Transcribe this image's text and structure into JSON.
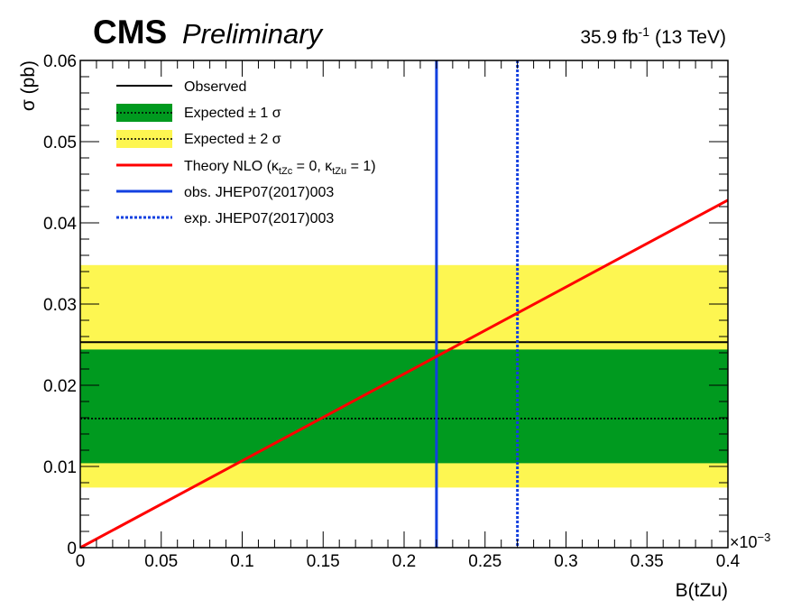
{
  "header": {
    "experiment": "CMS",
    "status": "Preliminary",
    "lumi_value": "35.9 fb",
    "lumi_exponent": "-1",
    "energy": "(13 TeV)"
  },
  "chart_data": {
    "type": "line",
    "xlabel": "B(tZu)",
    "ylabel": "σ (pb)",
    "x_multiplier": "×10",
    "x_multiplier_exponent": "−3",
    "xlim": [
      0,
      0.4
    ],
    "ylim": [
      0,
      0.06
    ],
    "x_ticks": [
      0,
      0.05,
      0.1,
      0.15,
      0.2,
      0.25,
      0.3,
      0.35,
      0.4
    ],
    "x_tick_labels": [
      "0",
      "0.05",
      "0.1",
      "0.15",
      "0.2",
      "0.25",
      "0.3",
      "0.35",
      "0.4"
    ],
    "y_ticks": [
      0,
      0.01,
      0.02,
      0.03,
      0.04,
      0.05,
      0.06
    ],
    "y_tick_labels": [
      "0",
      "0.01",
      "0.02",
      "0.03",
      "0.04",
      "0.05",
      "0.06"
    ],
    "observed": 0.0253,
    "expected": 0.0159,
    "expected_1sigma": [
      0.0104,
      0.0244
    ],
    "expected_2sigma": [
      0.0074,
      0.0348
    ],
    "theory_nlo": {
      "x": [
        0,
        0.4
      ],
      "y": [
        0,
        0.0428
      ]
    },
    "obs_previous_x": 0.22,
    "exp_previous_x": 0.27,
    "colors": {
      "observed": "#000000",
      "band_1sigma": "#009a1f",
      "band_2sigma": "#fdf651",
      "theory": "#ff0000",
      "previous": "#1240e0"
    },
    "legend": {
      "placement": "top-left",
      "observed": "Observed",
      "expected_1sigma": "Expected ± 1 σ",
      "expected_2sigma": "Expected ± 2 σ",
      "theory_prefix": "Theory NLO (κ",
      "theory_sub1": "tZc",
      "theory_mid": " = 0, κ",
      "theory_sub2": "tZu",
      "theory_suffix": " = 1)",
      "obs_previous": "obs. JHEP07(2017)003",
      "exp_previous": "exp. JHEP07(2017)003"
    }
  }
}
